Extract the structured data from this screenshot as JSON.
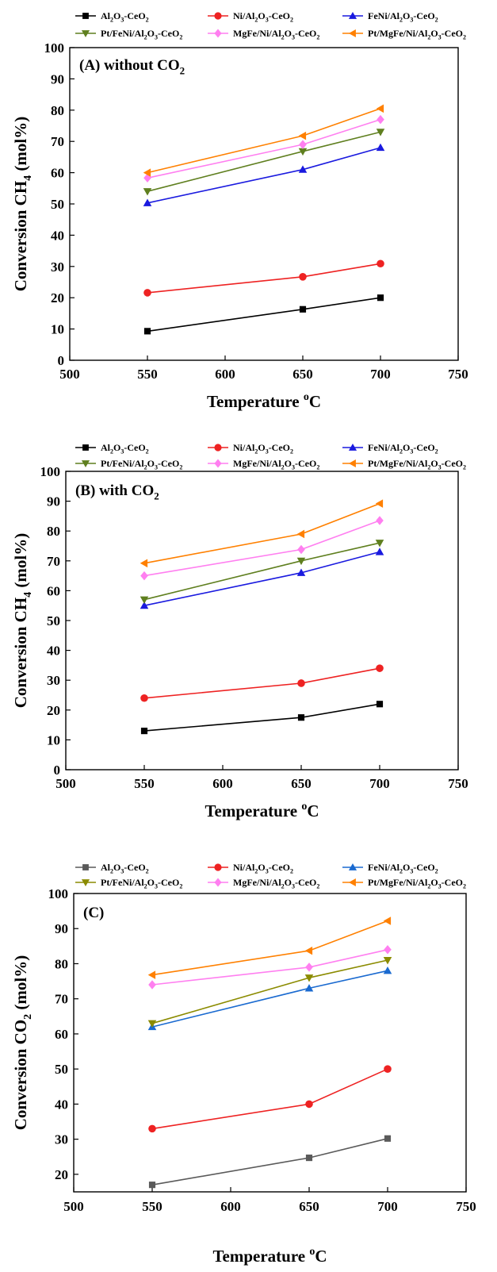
{
  "chart_data": [
    {
      "type": "line",
      "title": "(A) without CO2",
      "xlabel": "Temperature oC",
      "ylabel": "Conversion CH4 (mol%)",
      "xlim": [
        500,
        750
      ],
      "ylim": [
        0,
        100
      ],
      "xticks": [
        500,
        550,
        600,
        650,
        700,
        750
      ],
      "yticks": [
        0,
        10,
        20,
        30,
        40,
        50,
        60,
        70,
        80,
        90,
        100
      ],
      "x": [
        550,
        650,
        700
      ],
      "grid": false,
      "legend_position": "top",
      "series": [
        {
          "name": "Al2O3-CeO2",
          "color": "#000000",
          "marker": "square",
          "values": [
            9.3,
            16.3,
            20.0
          ]
        },
        {
          "name": "Ni/Al2O3-CeO2",
          "color": "#ee2222",
          "marker": "circle",
          "values": [
            21.6,
            26.7,
            30.9
          ]
        },
        {
          "name": "FeNi/Al2O3-CeO2",
          "color": "#1a1adf",
          "marker": "triangle-up",
          "values": [
            50.3,
            61.0,
            68.0
          ]
        },
        {
          "name": "Pt/FeNi/Al2O3-CeO2",
          "color": "#5f7f1f",
          "marker": "triangle-down",
          "values": [
            54.0,
            66.8,
            73.0
          ]
        },
        {
          "name": "MgFe/Ni/Al2O3-CeO2",
          "color": "#ff7ff0",
          "marker": "diamond",
          "values": [
            58.3,
            69.0,
            77.0
          ]
        },
        {
          "name": "Pt/MgFe/Ni/Al2O3-CeO2",
          "color": "#ff8000",
          "marker": "triangle-left",
          "values": [
            60.0,
            71.8,
            80.5
          ]
        }
      ]
    },
    {
      "type": "line",
      "title": "(B) with CO2",
      "xlabel": "Temperature oC",
      "ylabel": "Conversion CH4 (mol%)",
      "xlim": [
        500,
        750
      ],
      "ylim": [
        0,
        100
      ],
      "xticks": [
        500,
        550,
        600,
        650,
        700,
        750
      ],
      "yticks": [
        0,
        10,
        20,
        30,
        40,
        50,
        60,
        70,
        80,
        90,
        100
      ],
      "x": [
        550,
        650,
        700
      ],
      "grid": false,
      "legend_position": "top",
      "series": [
        {
          "name": "Al2O3-CeO2",
          "color": "#000000",
          "marker": "square",
          "values": [
            13.0,
            17.5,
            22.0
          ]
        },
        {
          "name": "Ni/Al2O3-CeO2",
          "color": "#ee2222",
          "marker": "circle",
          "values": [
            24.0,
            29.0,
            34.0
          ]
        },
        {
          "name": "FeNi/Al2O3-CeO2",
          "color": "#1a1adf",
          "marker": "triangle-up",
          "values": [
            55.0,
            66.0,
            73.0
          ]
        },
        {
          "name": "Pt/FeNi/Al2O3-CeO2",
          "color": "#5f7f1f",
          "marker": "triangle-down",
          "values": [
            57.0,
            70.0,
            76.0
          ]
        },
        {
          "name": "MgFe/Ni/Al2O3-CeO2",
          "color": "#ff7ff0",
          "marker": "diamond",
          "values": [
            65.0,
            73.8,
            83.5
          ]
        },
        {
          "name": "Pt/MgFe/Ni/Al2O3-CeO2",
          "color": "#ff8000",
          "marker": "triangle-left",
          "values": [
            69.2,
            79.0,
            89.2
          ]
        }
      ]
    },
    {
      "type": "line",
      "title": "(C)",
      "xlabel": "Temperature oC",
      "ylabel": "Conversion CO2 (mol%)",
      "xlim": [
        500,
        750
      ],
      "ylim": [
        15,
        100
      ],
      "xticks": [
        500,
        550,
        600,
        650,
        700,
        750
      ],
      "yticks": [
        20,
        30,
        40,
        50,
        60,
        70,
        80,
        90,
        100
      ],
      "x": [
        550,
        650,
        700
      ],
      "grid": false,
      "legend_position": "top",
      "series": [
        {
          "name": "Al2O3-CeO2",
          "color": "#5a5a5a",
          "marker": "square",
          "values": [
            17.0,
            24.7,
            30.2
          ]
        },
        {
          "name": "Ni/Al2O3-CeO2",
          "color": "#ee2222",
          "marker": "circle",
          "values": [
            33.0,
            40.0,
            50.0
          ]
        },
        {
          "name": "FeNi/Al2O3-CeO2",
          "color": "#1a6ad0",
          "marker": "triangle-up",
          "values": [
            62.0,
            73.0,
            78.0
          ]
        },
        {
          "name": "Pt/FeNi/Al2O3-CeO2",
          "color": "#8b8b00",
          "marker": "triangle-down",
          "values": [
            63.0,
            76.0,
            81.0
          ]
        },
        {
          "name": "MgFe/Ni/Al2O3-CeO2",
          "color": "#ff7ff0",
          "marker": "diamond",
          "values": [
            74.0,
            79.0,
            84.0
          ]
        },
        {
          "name": "Pt/MgFe/Ni/Al2O3-CeO2",
          "color": "#ff8000",
          "marker": "triangle-left",
          "values": [
            76.8,
            83.7,
            92.2
          ]
        }
      ]
    }
  ]
}
